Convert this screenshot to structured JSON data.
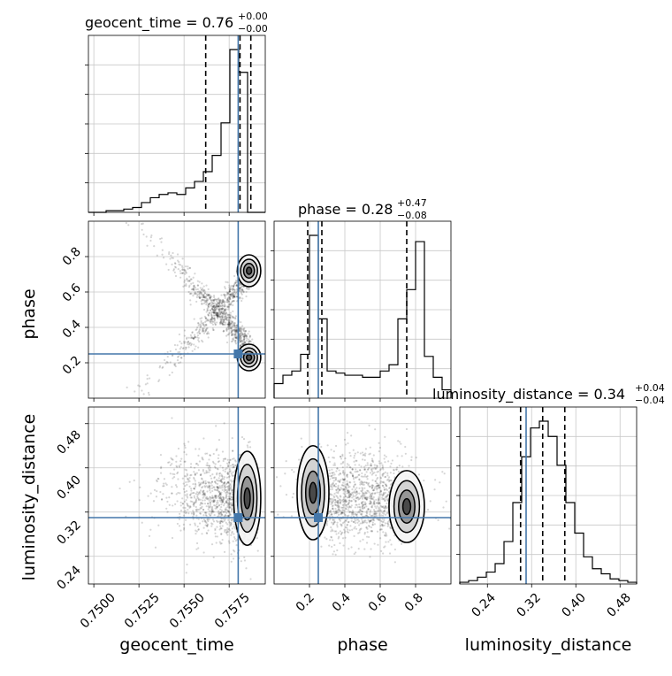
{
  "chart_data": {
    "type": "corner",
    "parameters": [
      "geocent_time",
      "phase",
      "luminosity_distance"
    ],
    "truth_color": "#4477aa",
    "truths": {
      "geocent_time": 0.758,
      "phase": 0.25,
      "luminosity_distance": 0.31
    },
    "titles": [
      {
        "name": "geocent_time",
        "median": "0.76",
        "upper": "+0.00",
        "lower": "−0.00"
      },
      {
        "name": "phase",
        "median": "0.28",
        "upper": "+0.47",
        "lower": "−0.08"
      },
      {
        "name": "luminosity_distance",
        "median": "0.34",
        "upper": "+0.04",
        "lower": "−0.04"
      }
    ],
    "quantiles": {
      "geocent_time": [
        0.7562,
        0.7581,
        0.7587
      ],
      "phase": [
        0.19,
        0.27,
        0.75
      ],
      "luminosity_distance": [
        0.3,
        0.34,
        0.38
      ]
    },
    "ranges": {
      "geocent_time": [
        0.7497,
        0.7595
      ],
      "phase": [
        0.0,
        1.0
      ],
      "luminosity_distance": [
        0.19,
        0.51
      ]
    },
    "axis_labels": {
      "geocent_time": "geocent_time",
      "phase": "phase",
      "luminosity_distance": "luminosity_distance"
    },
    "ticks": {
      "geocent_time": [
        "0.7500",
        "0.7525",
        "0.7550",
        "0.7575"
      ],
      "phase": [
        "0.2",
        "0.4",
        "0.6",
        "0.8"
      ],
      "luminosity_distance": [
        "0.24",
        "0.32",
        "0.40",
        "0.48"
      ]
    },
    "histograms": {
      "geocent_time": {
        "edges_start": 0.7497,
        "bin_width": 0.00049,
        "heights": [
          0.0,
          0.0,
          0.01,
          0.01,
          0.02,
          0.03,
          0.06,
          0.09,
          0.11,
          0.12,
          0.11,
          0.15,
          0.19,
          0.25,
          0.35,
          0.55,
          1.0,
          0.86,
          0.0,
          0.0
        ]
      },
      "phase": {
        "edges_start": 0.0,
        "bin_width": 0.05,
        "heights": [
          0.07,
          0.11,
          0.13,
          0.21,
          0.78,
          0.38,
          0.13,
          0.12,
          0.11,
          0.11,
          0.1,
          0.1,
          0.13,
          0.16,
          0.38,
          0.52,
          0.75,
          0.2,
          0.1,
          0.04
        ]
      },
      "luminosity_distance": {
        "edges_start": 0.19,
        "bin_width": 0.016,
        "heights": [
          0.01,
          0.02,
          0.04,
          0.07,
          0.12,
          0.25,
          0.48,
          0.75,
          0.92,
          0.96,
          0.87,
          0.7,
          0.48,
          0.3,
          0.16,
          0.09,
          0.06,
          0.03,
          0.02,
          0.01
        ]
      }
    },
    "grid": true
  }
}
